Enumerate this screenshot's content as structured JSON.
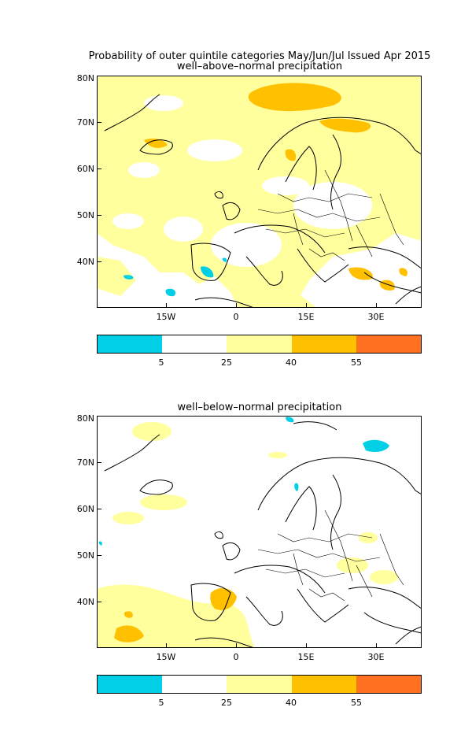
{
  "header": {
    "title": "Probability of outer quintile categories May/Jun/Jul Issued Apr 2015"
  },
  "panels": [
    {
      "subtitle": "well–above–normal precipitation"
    },
    {
      "subtitle": "well–below–normal precipitation"
    }
  ],
  "axes": {
    "lat_labels": [
      "80N",
      "70N",
      "60N",
      "50N",
      "40N"
    ],
    "lon_labels": [
      "15W",
      "0",
      "15E",
      "30E"
    ]
  },
  "colorbar": {
    "colors": [
      "#00cfe6",
      "#ffffff",
      "#ffff9e",
      "#ffc000",
      "#ff7020"
    ],
    "labels": [
      "5",
      "25",
      "40",
      "55"
    ]
  }
}
